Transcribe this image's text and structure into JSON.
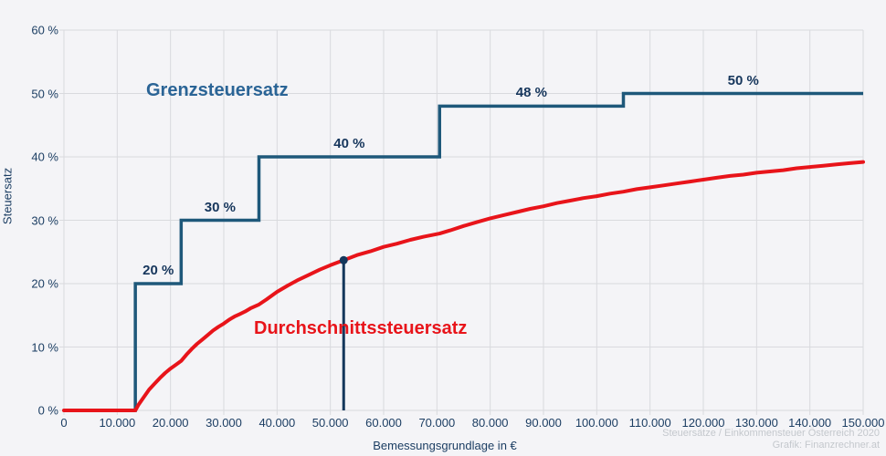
{
  "page_background": "#f4f4f7",
  "colors": {
    "grid": "#d9dade",
    "axis_text": "#1c3e63",
    "step_line": "#1e587a",
    "step_label_text": "#16365c",
    "grenz_label": "#2a6496",
    "avg_line": "#e8141a",
    "marker": "#14375c",
    "attribution_text": "#c4c8cd"
  },
  "chart_data": {
    "type": "line",
    "title": "",
    "xlabel": "Bemessungsgrundlage in €",
    "ylabel": "Steuersatz",
    "xlim": [
      0,
      150000
    ],
    "ylim": [
      0,
      60
    ],
    "grid": true,
    "legend": "inline-labels",
    "x_ticks": [
      {
        "value": 0,
        "label": "0"
      },
      {
        "value": 10000,
        "label": "10.000"
      },
      {
        "value": 20000,
        "label": "20.000"
      },
      {
        "value": 30000,
        "label": "30.000"
      },
      {
        "value": 40000,
        "label": "40.000"
      },
      {
        "value": 50000,
        "label": "50.000"
      },
      {
        "value": 60000,
        "label": "60.000"
      },
      {
        "value": 70000,
        "label": "70.000"
      },
      {
        "value": 80000,
        "label": "80.000"
      },
      {
        "value": 90000,
        "label": "90.000"
      },
      {
        "value": 100000,
        "label": "100.000"
      },
      {
        "value": 110000,
        "label": "110.000"
      },
      {
        "value": 120000,
        "label": "120.000"
      },
      {
        "value": 130000,
        "label": "130.000"
      },
      {
        "value": 140000,
        "label": "140.000"
      },
      {
        "value": 150000,
        "label": "150.000"
      }
    ],
    "y_ticks": [
      {
        "value": 0,
        "label": "0 %"
      },
      {
        "value": 10,
        "label": "10 %"
      },
      {
        "value": 20,
        "label": "20 %"
      },
      {
        "value": 30,
        "label": "30 %"
      },
      {
        "value": 40,
        "label": "40 %"
      },
      {
        "value": 50,
        "label": "50 %"
      },
      {
        "value": 60,
        "label": "60 %"
      }
    ],
    "series": [
      {
        "name": "Grenzsteuersatz",
        "type": "step",
        "steps": [
          {
            "from": 0,
            "to": 13400,
            "rate": 0,
            "label": ""
          },
          {
            "from": 13400,
            "to": 22000,
            "rate": 20,
            "label": "20 %"
          },
          {
            "from": 22000,
            "to": 36600,
            "rate": 30,
            "label": "30 %"
          },
          {
            "from": 36600,
            "to": 70500,
            "rate": 40,
            "label": "40 %"
          },
          {
            "from": 70500,
            "to": 105000,
            "rate": 48,
            "label": "48 %"
          },
          {
            "from": 105000,
            "to": 150000,
            "rate": 50,
            "label": "50 %"
          }
        ]
      },
      {
        "name": "Durchschnittssteuersatz",
        "type": "line",
        "points": [
          [
            0,
            0
          ],
          [
            13400,
            0
          ],
          [
            14000,
            0.9
          ],
          [
            15000,
            2.1
          ],
          [
            16000,
            3.3
          ],
          [
            17000,
            4.2
          ],
          [
            18000,
            5.1
          ],
          [
            19000,
            5.9
          ],
          [
            20000,
            6.6
          ],
          [
            21000,
            7.2
          ],
          [
            22000,
            7.8
          ],
          [
            23000,
            8.8
          ],
          [
            24000,
            9.7
          ],
          [
            25000,
            10.5
          ],
          [
            26000,
            11.2
          ],
          [
            27000,
            11.9
          ],
          [
            28000,
            12.6
          ],
          [
            29000,
            13.2
          ],
          [
            30000,
            13.7
          ],
          [
            31000,
            14.3
          ],
          [
            32000,
            14.8
          ],
          [
            33000,
            15.2
          ],
          [
            34000,
            15.6
          ],
          [
            35000,
            16.1
          ],
          [
            36600,
            16.7
          ],
          [
            38000,
            17.5
          ],
          [
            40000,
            18.7
          ],
          [
            42000,
            19.7
          ],
          [
            44000,
            20.6
          ],
          [
            46000,
            21.4
          ],
          [
            48000,
            22.2
          ],
          [
            50000,
            22.9
          ],
          [
            52500,
            23.7
          ],
          [
            55000,
            24.5
          ],
          [
            57500,
            25.1
          ],
          [
            60000,
            25.8
          ],
          [
            62500,
            26.3
          ],
          [
            65000,
            26.9
          ],
          [
            67500,
            27.4
          ],
          [
            70500,
            27.9
          ],
          [
            72500,
            28.4
          ],
          [
            75000,
            29.1
          ],
          [
            77500,
            29.7
          ],
          [
            80000,
            30.3
          ],
          [
            82500,
            30.8
          ],
          [
            85000,
            31.3
          ],
          [
            87500,
            31.8
          ],
          [
            90000,
            32.2
          ],
          [
            92500,
            32.7
          ],
          [
            95000,
            33.1
          ],
          [
            97500,
            33.5
          ],
          [
            100000,
            33.8
          ],
          [
            102500,
            34.2
          ],
          [
            105000,
            34.5
          ],
          [
            107500,
            34.9
          ],
          [
            110000,
            35.2
          ],
          [
            112500,
            35.5
          ],
          [
            115000,
            35.8
          ],
          [
            117500,
            36.1
          ],
          [
            120000,
            36.4
          ],
          [
            122500,
            36.7
          ],
          [
            125000,
            37.0
          ],
          [
            127500,
            37.2
          ],
          [
            130000,
            37.5
          ],
          [
            132500,
            37.7
          ],
          [
            135000,
            37.9
          ],
          [
            137500,
            38.2
          ],
          [
            140000,
            38.4
          ],
          [
            142500,
            38.6
          ],
          [
            145000,
            38.8
          ],
          [
            147500,
            39.0
          ],
          [
            150000,
            39.2
          ]
        ]
      }
    ],
    "marker": {
      "x": 52500,
      "y_pct": 23.7
    }
  },
  "attribution": {
    "line1": "Steuersätze / Einkommensteuer Österreich 2020",
    "line2": "Grafik: Finanzrechner.at"
  }
}
